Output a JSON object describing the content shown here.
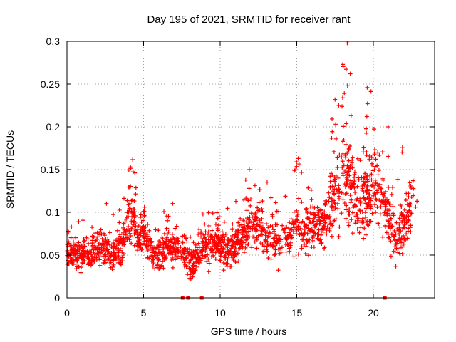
{
  "chart_data": {
    "type": "scatter",
    "title": "Day 195 of 2021, SRMTID for receiver rant",
    "xlabel": "GPS time / hours",
    "ylabel": "SRMTID / TECUs",
    "xlim": [
      0,
      24
    ],
    "ylim": [
      0,
      0.3
    ],
    "x_ticks": [
      0,
      5,
      10,
      15,
      20
    ],
    "x_tick_labels": [
      "0",
      "5",
      "10",
      "15",
      "20"
    ],
    "y_ticks": [
      0,
      0.05,
      0.1,
      0.15,
      0.2,
      0.25,
      0.3
    ],
    "y_tick_labels": [
      "0",
      "0.05",
      "0.1",
      "0.15",
      "0.2",
      "0.25",
      "0.3"
    ],
    "grid": true,
    "marker": "+",
    "color": "#ff0000",
    "zero_markers_x": [
      7.55,
      7.9,
      8.8,
      20.75
    ],
    "trend": [
      [
        0.0,
        0.055
      ],
      [
        0.5,
        0.05
      ],
      [
        1.0,
        0.052
      ],
      [
        1.5,
        0.055
      ],
      [
        2.0,
        0.06
      ],
      [
        2.5,
        0.055
      ],
      [
        3.0,
        0.05
      ],
      [
        3.5,
        0.06
      ],
      [
        4.0,
        0.09
      ],
      [
        4.3,
        0.1
      ],
      [
        4.6,
        0.065
      ],
      [
        5.0,
        0.08
      ],
      [
        5.5,
        0.055
      ],
      [
        6.0,
        0.05
      ],
      [
        6.5,
        0.06
      ],
      [
        7.0,
        0.06
      ],
      [
        7.5,
        0.055
      ],
      [
        8.0,
        0.04
      ],
      [
        8.5,
        0.05
      ],
      [
        9.0,
        0.06
      ],
      [
        9.5,
        0.065
      ],
      [
        10.0,
        0.06
      ],
      [
        10.5,
        0.055
      ],
      [
        11.0,
        0.06
      ],
      [
        11.5,
        0.075
      ],
      [
        12.0,
        0.085
      ],
      [
        12.5,
        0.085
      ],
      [
        13.0,
        0.07
      ],
      [
        13.5,
        0.065
      ],
      [
        14.0,
        0.07
      ],
      [
        14.5,
        0.07
      ],
      [
        15.0,
        0.09
      ],
      [
        15.5,
        0.075
      ],
      [
        16.0,
        0.085
      ],
      [
        16.5,
        0.09
      ],
      [
        17.0,
        0.09
      ],
      [
        17.5,
        0.12
      ],
      [
        18.0,
        0.14
      ],
      [
        18.5,
        0.13
      ],
      [
        19.0,
        0.1
      ],
      [
        19.5,
        0.12
      ],
      [
        20.0,
        0.13
      ],
      [
        20.5,
        0.11
      ],
      [
        21.0,
        0.1
      ],
      [
        21.5,
        0.065
      ],
      [
        22.0,
        0.08
      ],
      [
        22.5,
        0.1
      ]
    ],
    "spread": [
      [
        0.0,
        0.015
      ],
      [
        4.0,
        0.025
      ],
      [
        5.0,
        0.02
      ],
      [
        11.5,
        0.02
      ],
      [
        15.0,
        0.025
      ],
      [
        17.0,
        0.03
      ],
      [
        18.0,
        0.05
      ],
      [
        20.0,
        0.04
      ],
      [
        22.5,
        0.025
      ]
    ],
    "peaks": [
      [
        4.15,
        0.153
      ],
      [
        11.9,
        0.15
      ],
      [
        15.1,
        0.163
      ],
      [
        17.5,
        0.232
      ],
      [
        18.0,
        0.273
      ],
      [
        18.3,
        0.298
      ],
      [
        19.6,
        0.246
      ],
      [
        21.9,
        0.176
      ],
      [
        22.6,
        0.137
      ]
    ]
  }
}
